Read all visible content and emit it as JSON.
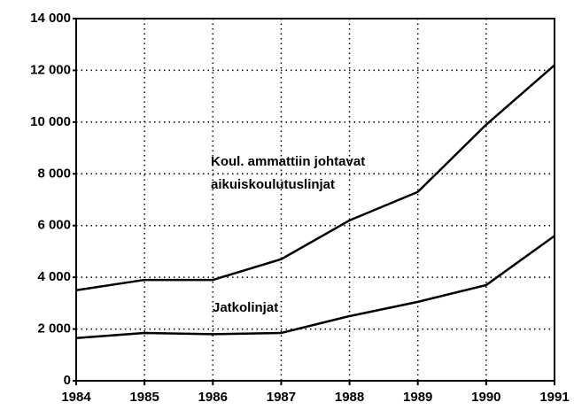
{
  "chart_data": {
    "type": "line",
    "x": [
      1984,
      1985,
      1986,
      1987,
      1988,
      1989,
      1990,
      1991
    ],
    "series": [
      {
        "name": "Jatkolinjat",
        "color": "#000000",
        "values": [
          1650,
          1850,
          1800,
          1850,
          2500,
          3050,
          3700,
          5600
        ]
      },
      {
        "name": "Koul. ammattiin johtavat aikuiskoulutuslinjat",
        "color": "#000000",
        "values": [
          3500,
          3900,
          3900,
          4700,
          6200,
          7300,
          9900,
          12200
        ]
      }
    ],
    "xlim": [
      1984,
      1991
    ],
    "xticks": [
      1984,
      1985,
      1986,
      1987,
      1988,
      1989,
      1990,
      1991
    ],
    "ylim": [
      0,
      14000
    ],
    "yticks": [
      0,
      {
        "value": 2000,
        "label": "2 000"
      },
      {
        "value": 4000,
        "label": "4 000"
      },
      {
        "value": 6000,
        "label": "6 000"
      },
      {
        "value": 8000,
        "label": "8 000"
      },
      {
        "value": 10000,
        "label": "10 000"
      },
      {
        "value": 12000,
        "label": "12 000"
      },
      {
        "value": 14000,
        "label": "14 000"
      }
    ],
    "grid": true
  }
}
